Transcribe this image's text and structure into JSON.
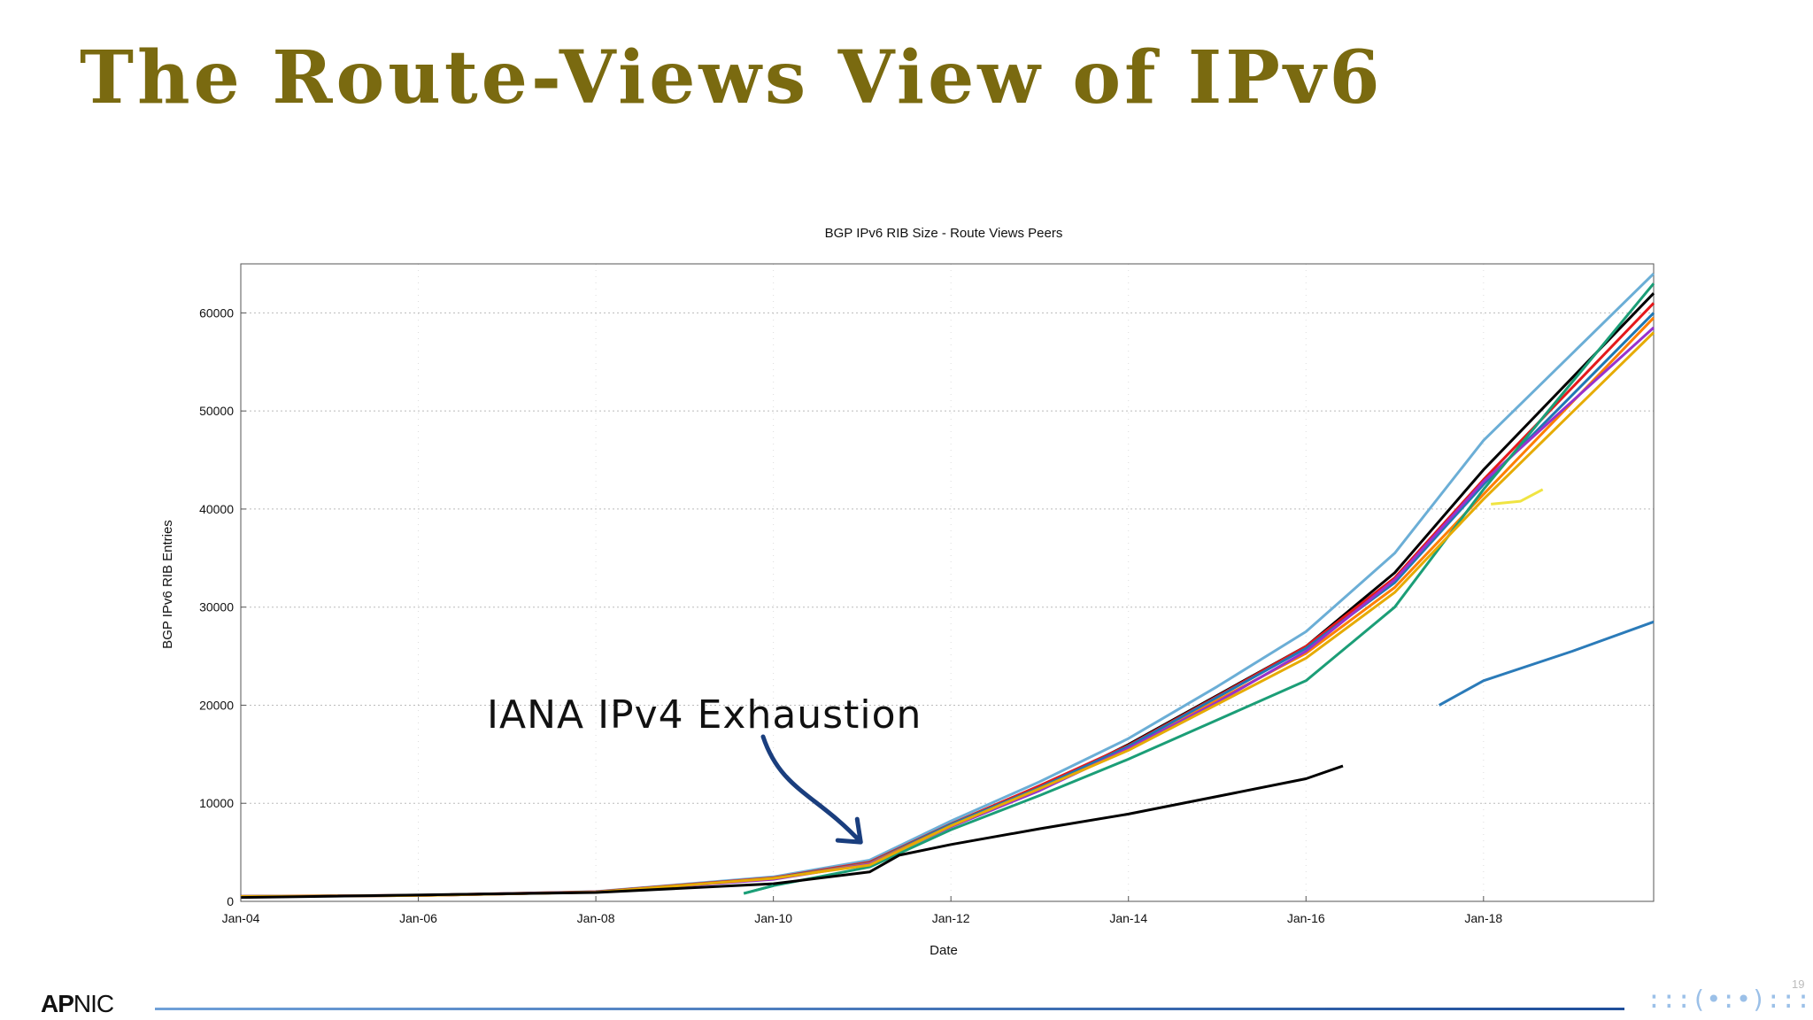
{
  "slide": {
    "title": "The Route-Views View of IPv6",
    "page_number": "19",
    "footer_logo_bold": "AP",
    "footer_logo_rest": "NIC"
  },
  "colors": {
    "title": "#7a6a10",
    "arrow": "#1a3e7e",
    "footer_line": "#1f4e9a"
  },
  "chart_data": {
    "type": "line",
    "title": "BGP IPv6 RIB Size - Route Views Peers",
    "xlabel": "Date",
    "ylabel": "BGP IPv6 RIB Entries",
    "x_ticks": [
      "Jan-04",
      "Jan-06",
      "Jan-08",
      "Jan-10",
      "Jan-12",
      "Jan-14",
      "Jan-16",
      "Jan-18"
    ],
    "y_ticks": [
      0,
      10000,
      20000,
      30000,
      40000,
      50000,
      60000
    ],
    "ylim": [
      0,
      65000
    ],
    "xlim": [
      "Jan-04",
      "Dec-19"
    ],
    "grid": true,
    "legend": "none",
    "annotation": {
      "text": "IANA IPv4 Exhaustion",
      "x": "Feb-11",
      "y": 5500
    },
    "series": [
      {
        "color": "#6baed6",
        "x": [
          "Jan-04",
          "Jan-06",
          "Jan-08",
          "Jan-10",
          "Feb-11",
          "Jan-12",
          "Jan-13",
          "Jan-14",
          "Jan-15",
          "Jan-16",
          "Jan-17",
          "Jan-18",
          "Dec-19"
        ],
        "values": [
          500,
          600,
          1000,
          2500,
          4200,
          8200,
          12200,
          16600,
          21900,
          27500,
          35500,
          47000,
          64000
        ]
      },
      {
        "color": "#000000",
        "x": [
          "Jan-04",
          "Jan-06",
          "Jan-08",
          "Jan-10",
          "Feb-11",
          "Jan-12",
          "Jan-13",
          "Jan-14",
          "Jan-15",
          "Jan-16",
          "Jan-17",
          "Jan-18",
          "Dec-19"
        ],
        "values": [
          500,
          600,
          950,
          2300,
          3800,
          7800,
          11500,
          16000,
          21000,
          26000,
          33500,
          44000,
          62000
        ]
      },
      {
        "color": "#e41a1c",
        "x": [
          "Jan-04",
          "Jan-06",
          "Jan-08",
          "Jan-10",
          "Feb-11",
          "Jan-12",
          "Jan-13",
          "Jan-14",
          "Jan-15",
          "Jan-16",
          "Jan-17",
          "Jan-18",
          "Dec-19"
        ],
        "values": [
          520,
          620,
          980,
          2400,
          4000,
          7900,
          11800,
          15900,
          20900,
          26000,
          33000,
          43000,
          61000
        ]
      },
      {
        "color": "#1f78b4",
        "x": [
          "Jan-04",
          "Jan-06",
          "Jan-08",
          "Jan-10",
          "Feb-11",
          "Jan-12",
          "Jan-13",
          "Jan-14",
          "Jan-15",
          "Jan-16",
          "Jan-17",
          "Jan-18",
          "Dec-19"
        ],
        "values": [
          510,
          610,
          960,
          2350,
          3900,
          7850,
          11600,
          15800,
          20800,
          25800,
          32500,
          42500,
          60000
        ]
      },
      {
        "color": "#ff7f00",
        "x": [
          "Jan-04",
          "Jan-06",
          "Jan-08",
          "Jan-10",
          "Feb-11",
          "Jan-12",
          "Jan-13",
          "Jan-14",
          "Jan-15",
          "Jan-16",
          "Jan-17",
          "Jan-18",
          "Dec-19"
        ],
        "values": [
          500,
          600,
          950,
          2300,
          3850,
          7700,
          11400,
          15500,
          20500,
          25300,
          32000,
          41500,
          59500
        ]
      },
      {
        "color": "#9932cc",
        "x": [
          "Jan-04",
          "Jan-06",
          "Jan-08",
          "Jan-10",
          "Feb-11",
          "Jan-12",
          "Jan-13",
          "Jan-14",
          "Jan-15",
          "Jan-16",
          "Jan-17",
          "Jan-18",
          "Dec-19"
        ],
        "values": [
          500,
          600,
          940,
          2250,
          3800,
          7600,
          11300,
          15600,
          20300,
          25500,
          32800,
          42800,
          58500
        ]
      },
      {
        "color": "#1b9e77",
        "x": [
          "Sep-09",
          "Jan-10",
          "Feb-11",
          "Jan-12",
          "Jan-13",
          "Jan-14",
          "Jan-15",
          "Jan-16",
          "Jan-17",
          "Jan-18",
          "Dec-19"
        ],
        "values": [
          800,
          1600,
          3500,
          7300,
          10800,
          14500,
          18500,
          22500,
          30000,
          42000,
          63000
        ]
      },
      {
        "color": "#e6ab02",
        "x": [
          "Jan-04",
          "Jan-06",
          "Jan-08",
          "Jan-10",
          "Feb-11",
          "Jan-12",
          "Jan-13",
          "Jan-14",
          "Jan-15",
          "Jan-16",
          "Jan-17",
          "Jan-18",
          "Dec-19"
        ],
        "values": [
          500,
          600,
          930,
          2350,
          3700,
          7700,
          11500,
          15400,
          20100,
          24800,
          31500,
          41000,
          58000
        ]
      },
      {
        "color": "#000000",
        "x": [
          "Jan-04",
          "Jan-08",
          "Jan-10",
          "Feb-11",
          "Jun-11",
          "Jan-12",
          "Jan-13",
          "Jan-14",
          "Jan-15",
          "Jan-16",
          "Jun-16"
        ],
        "values": [
          400,
          900,
          1800,
          3000,
          4700,
          5800,
          7400,
          8900,
          10700,
          12500,
          13800
        ]
      },
      {
        "color": "#1b9e77",
        "x": [
          "Sep-09",
          "Jan-10"
        ],
        "values": [
          800,
          1600
        ]
      },
      {
        "color": "#2b7bb9",
        "x": [
          "Jul-17",
          "Jan-18",
          "Jan-19",
          "Dec-19"
        ],
        "values": [
          20000,
          22500,
          25500,
          28500
        ]
      },
      {
        "color": "#f0e442",
        "x": [
          "Feb-18",
          "Jun-18",
          "Sep-18"
        ],
        "values": [
          40500,
          40800,
          42000
        ]
      }
    ]
  }
}
